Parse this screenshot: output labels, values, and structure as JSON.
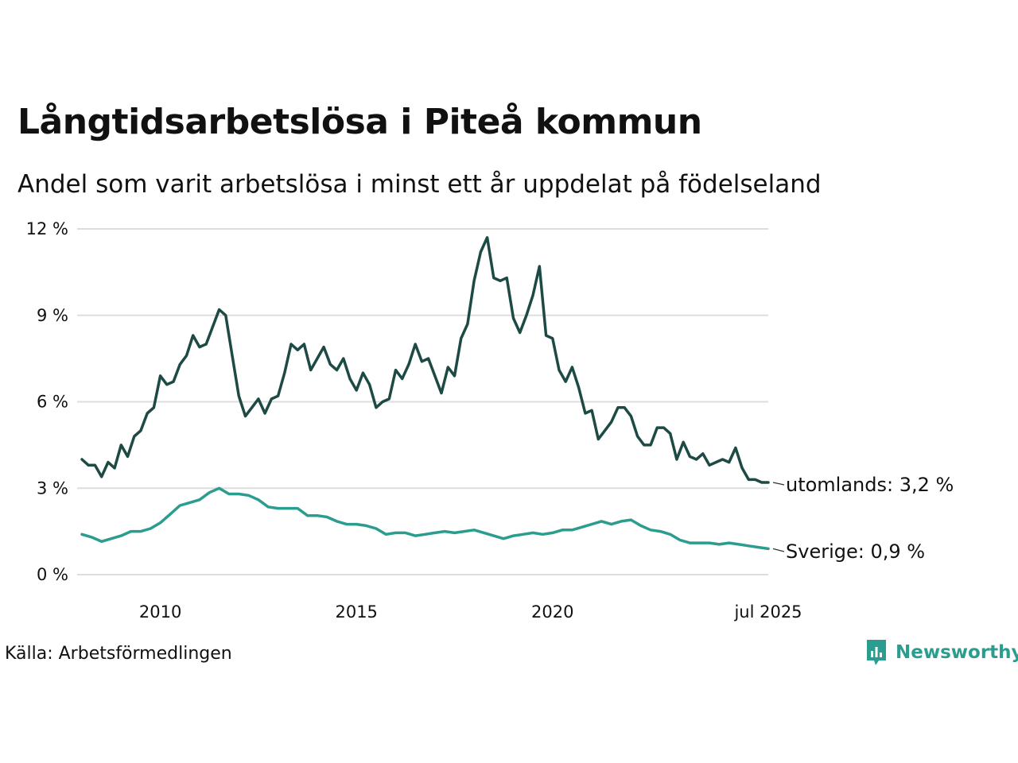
{
  "title": "Långtidsarbetslösa i Piteå kommun",
  "subtitle": "Andel som varit arbetslösa i minst ett år uppdelat på födelseland",
  "source": "Källa: Arbetsförmedlingen",
  "brand": "Newsworthy",
  "chart_data": {
    "type": "line",
    "title": "Långtidsarbetslösa i Piteå kommun",
    "subtitle": "Andel som varit arbetslösa i minst ett år uppdelat på födelseland",
    "x_start": "2008-01",
    "x_end": "2025-07",
    "x_ticks": [
      {
        "x": "2010-01",
        "label": "2010"
      },
      {
        "x": "2015-01",
        "label": "2015"
      },
      {
        "x": "2020-01",
        "label": "2020"
      },
      {
        "x": "2025-07",
        "label": "jul 2025"
      }
    ],
    "y_ticks": [
      0,
      3,
      6,
      9,
      12
    ],
    "y_tick_labels": [
      "0 %",
      "3 %",
      "6 %",
      "9 %",
      "12 %"
    ],
    "ylim": [
      0,
      12
    ],
    "grid": true,
    "series": [
      {
        "name": "utomlands",
        "end_label": "utomlands: 3,2 %",
        "color": "#1d4a45",
        "points": [
          [
            "2008-01",
            4.0
          ],
          [
            "2008-03",
            3.8
          ],
          [
            "2008-05",
            3.8
          ],
          [
            "2008-07",
            3.4
          ],
          [
            "2008-09",
            3.9
          ],
          [
            "2008-11",
            3.7
          ],
          [
            "2009-01",
            4.5
          ],
          [
            "2009-03",
            4.1
          ],
          [
            "2009-05",
            4.8
          ],
          [
            "2009-07",
            5.0
          ],
          [
            "2009-09",
            5.6
          ],
          [
            "2009-11",
            5.8
          ],
          [
            "2010-01",
            6.9
          ],
          [
            "2010-03",
            6.6
          ],
          [
            "2010-05",
            6.7
          ],
          [
            "2010-07",
            7.3
          ],
          [
            "2010-09",
            7.6
          ],
          [
            "2010-11",
            8.3
          ],
          [
            "2011-01",
            7.9
          ],
          [
            "2011-03",
            8.0
          ],
          [
            "2011-05",
            8.6
          ],
          [
            "2011-07",
            9.2
          ],
          [
            "2011-09",
            9.0
          ],
          [
            "2011-11",
            7.6
          ],
          [
            "2012-01",
            6.2
          ],
          [
            "2012-03",
            5.5
          ],
          [
            "2012-05",
            5.8
          ],
          [
            "2012-07",
            6.1
          ],
          [
            "2012-09",
            5.6
          ],
          [
            "2012-11",
            6.1
          ],
          [
            "2013-01",
            6.2
          ],
          [
            "2013-03",
            7.0
          ],
          [
            "2013-05",
            8.0
          ],
          [
            "2013-07",
            7.8
          ],
          [
            "2013-09",
            8.0
          ],
          [
            "2013-11",
            7.1
          ],
          [
            "2014-01",
            7.5
          ],
          [
            "2014-03",
            7.9
          ],
          [
            "2014-05",
            7.3
          ],
          [
            "2014-07",
            7.1
          ],
          [
            "2014-09",
            7.5
          ],
          [
            "2014-11",
            6.8
          ],
          [
            "2015-01",
            6.4
          ],
          [
            "2015-03",
            7.0
          ],
          [
            "2015-05",
            6.6
          ],
          [
            "2015-07",
            5.8
          ],
          [
            "2015-09",
            6.0
          ],
          [
            "2015-11",
            6.1
          ],
          [
            "2016-01",
            7.1
          ],
          [
            "2016-03",
            6.8
          ],
          [
            "2016-05",
            7.3
          ],
          [
            "2016-07",
            8.0
          ],
          [
            "2016-09",
            7.4
          ],
          [
            "2016-11",
            7.5
          ],
          [
            "2017-01",
            6.9
          ],
          [
            "2017-03",
            6.3
          ],
          [
            "2017-05",
            7.2
          ],
          [
            "2017-07",
            6.9
          ],
          [
            "2017-09",
            8.2
          ],
          [
            "2017-11",
            8.7
          ],
          [
            "2018-01",
            10.2
          ],
          [
            "2018-03",
            11.2
          ],
          [
            "2018-05",
            11.7
          ],
          [
            "2018-07",
            10.3
          ],
          [
            "2018-09",
            10.2
          ],
          [
            "2018-11",
            10.3
          ],
          [
            "2019-01",
            8.9
          ],
          [
            "2019-03",
            8.4
          ],
          [
            "2019-05",
            9.0
          ],
          [
            "2019-07",
            9.7
          ],
          [
            "2019-09",
            10.7
          ],
          [
            "2019-11",
            8.3
          ],
          [
            "2020-01",
            8.2
          ],
          [
            "2020-03",
            7.1
          ],
          [
            "2020-05",
            6.7
          ],
          [
            "2020-07",
            7.2
          ],
          [
            "2020-09",
            6.5
          ],
          [
            "2020-11",
            5.6
          ],
          [
            "2021-01",
            5.7
          ],
          [
            "2021-03",
            4.7
          ],
          [
            "2021-05",
            5.0
          ],
          [
            "2021-07",
            5.3
          ],
          [
            "2021-09",
            5.8
          ],
          [
            "2021-11",
            5.8
          ],
          [
            "2022-01",
            5.5
          ],
          [
            "2022-03",
            4.8
          ],
          [
            "2022-05",
            4.5
          ],
          [
            "2022-07",
            4.5
          ],
          [
            "2022-09",
            5.1
          ],
          [
            "2022-11",
            5.1
          ],
          [
            "2023-01",
            4.9
          ],
          [
            "2023-03",
            4.0
          ],
          [
            "2023-05",
            4.6
          ],
          [
            "2023-07",
            4.1
          ],
          [
            "2023-09",
            4.0
          ],
          [
            "2023-11",
            4.2
          ],
          [
            "2024-01",
            3.8
          ],
          [
            "2024-03",
            3.9
          ],
          [
            "2024-05",
            4.0
          ],
          [
            "2024-07",
            3.9
          ],
          [
            "2024-09",
            4.4
          ],
          [
            "2024-11",
            3.7
          ],
          [
            "2025-01",
            3.3
          ],
          [
            "2025-03",
            3.3
          ],
          [
            "2025-05",
            3.2
          ],
          [
            "2025-07",
            3.2
          ]
        ]
      },
      {
        "name": "Sverige",
        "end_label": "Sverige: 0,9 %",
        "color": "#2a9d8f",
        "points": [
          [
            "2008-01",
            1.4
          ],
          [
            "2008-04",
            1.3
          ],
          [
            "2008-07",
            1.15
          ],
          [
            "2008-10",
            1.25
          ],
          [
            "2009-01",
            1.35
          ],
          [
            "2009-04",
            1.5
          ],
          [
            "2009-07",
            1.5
          ],
          [
            "2009-10",
            1.6
          ],
          [
            "2010-01",
            1.8
          ],
          [
            "2010-04",
            2.1
          ],
          [
            "2010-07",
            2.4
          ],
          [
            "2010-10",
            2.5
          ],
          [
            "2011-01",
            2.6
          ],
          [
            "2011-04",
            2.85
          ],
          [
            "2011-07",
            3.0
          ],
          [
            "2011-10",
            2.8
          ],
          [
            "2012-01",
            2.8
          ],
          [
            "2012-04",
            2.75
          ],
          [
            "2012-07",
            2.6
          ],
          [
            "2012-10",
            2.35
          ],
          [
            "2013-01",
            2.3
          ],
          [
            "2013-04",
            2.3
          ],
          [
            "2013-07",
            2.3
          ],
          [
            "2013-10",
            2.05
          ],
          [
            "2014-01",
            2.05
          ],
          [
            "2014-04",
            2.0
          ],
          [
            "2014-07",
            1.85
          ],
          [
            "2014-10",
            1.75
          ],
          [
            "2015-01",
            1.75
          ],
          [
            "2015-04",
            1.7
          ],
          [
            "2015-07",
            1.6
          ],
          [
            "2015-10",
            1.4
          ],
          [
            "2016-01",
            1.45
          ],
          [
            "2016-04",
            1.45
          ],
          [
            "2016-07",
            1.35
          ],
          [
            "2016-10",
            1.4
          ],
          [
            "2017-01",
            1.45
          ],
          [
            "2017-04",
            1.5
          ],
          [
            "2017-07",
            1.45
          ],
          [
            "2017-10",
            1.5
          ],
          [
            "2018-01",
            1.55
          ],
          [
            "2018-04",
            1.45
          ],
          [
            "2018-07",
            1.35
          ],
          [
            "2018-10",
            1.25
          ],
          [
            "2019-01",
            1.35
          ],
          [
            "2019-04",
            1.4
          ],
          [
            "2019-07",
            1.45
          ],
          [
            "2019-10",
            1.4
          ],
          [
            "2020-01",
            1.45
          ],
          [
            "2020-04",
            1.55
          ],
          [
            "2020-07",
            1.55
          ],
          [
            "2020-10",
            1.65
          ],
          [
            "2021-01",
            1.75
          ],
          [
            "2021-04",
            1.85
          ],
          [
            "2021-07",
            1.75
          ],
          [
            "2021-10",
            1.85
          ],
          [
            "2022-01",
            1.9
          ],
          [
            "2022-04",
            1.7
          ],
          [
            "2022-07",
            1.55
          ],
          [
            "2022-10",
            1.5
          ],
          [
            "2023-01",
            1.4
          ],
          [
            "2023-04",
            1.2
          ],
          [
            "2023-07",
            1.1
          ],
          [
            "2023-10",
            1.1
          ],
          [
            "2024-01",
            1.1
          ],
          [
            "2024-04",
            1.05
          ],
          [
            "2024-07",
            1.1
          ],
          [
            "2024-10",
            1.05
          ],
          [
            "2025-01",
            1.0
          ],
          [
            "2025-04",
            0.95
          ],
          [
            "2025-07",
            0.9
          ]
        ]
      }
    ]
  }
}
